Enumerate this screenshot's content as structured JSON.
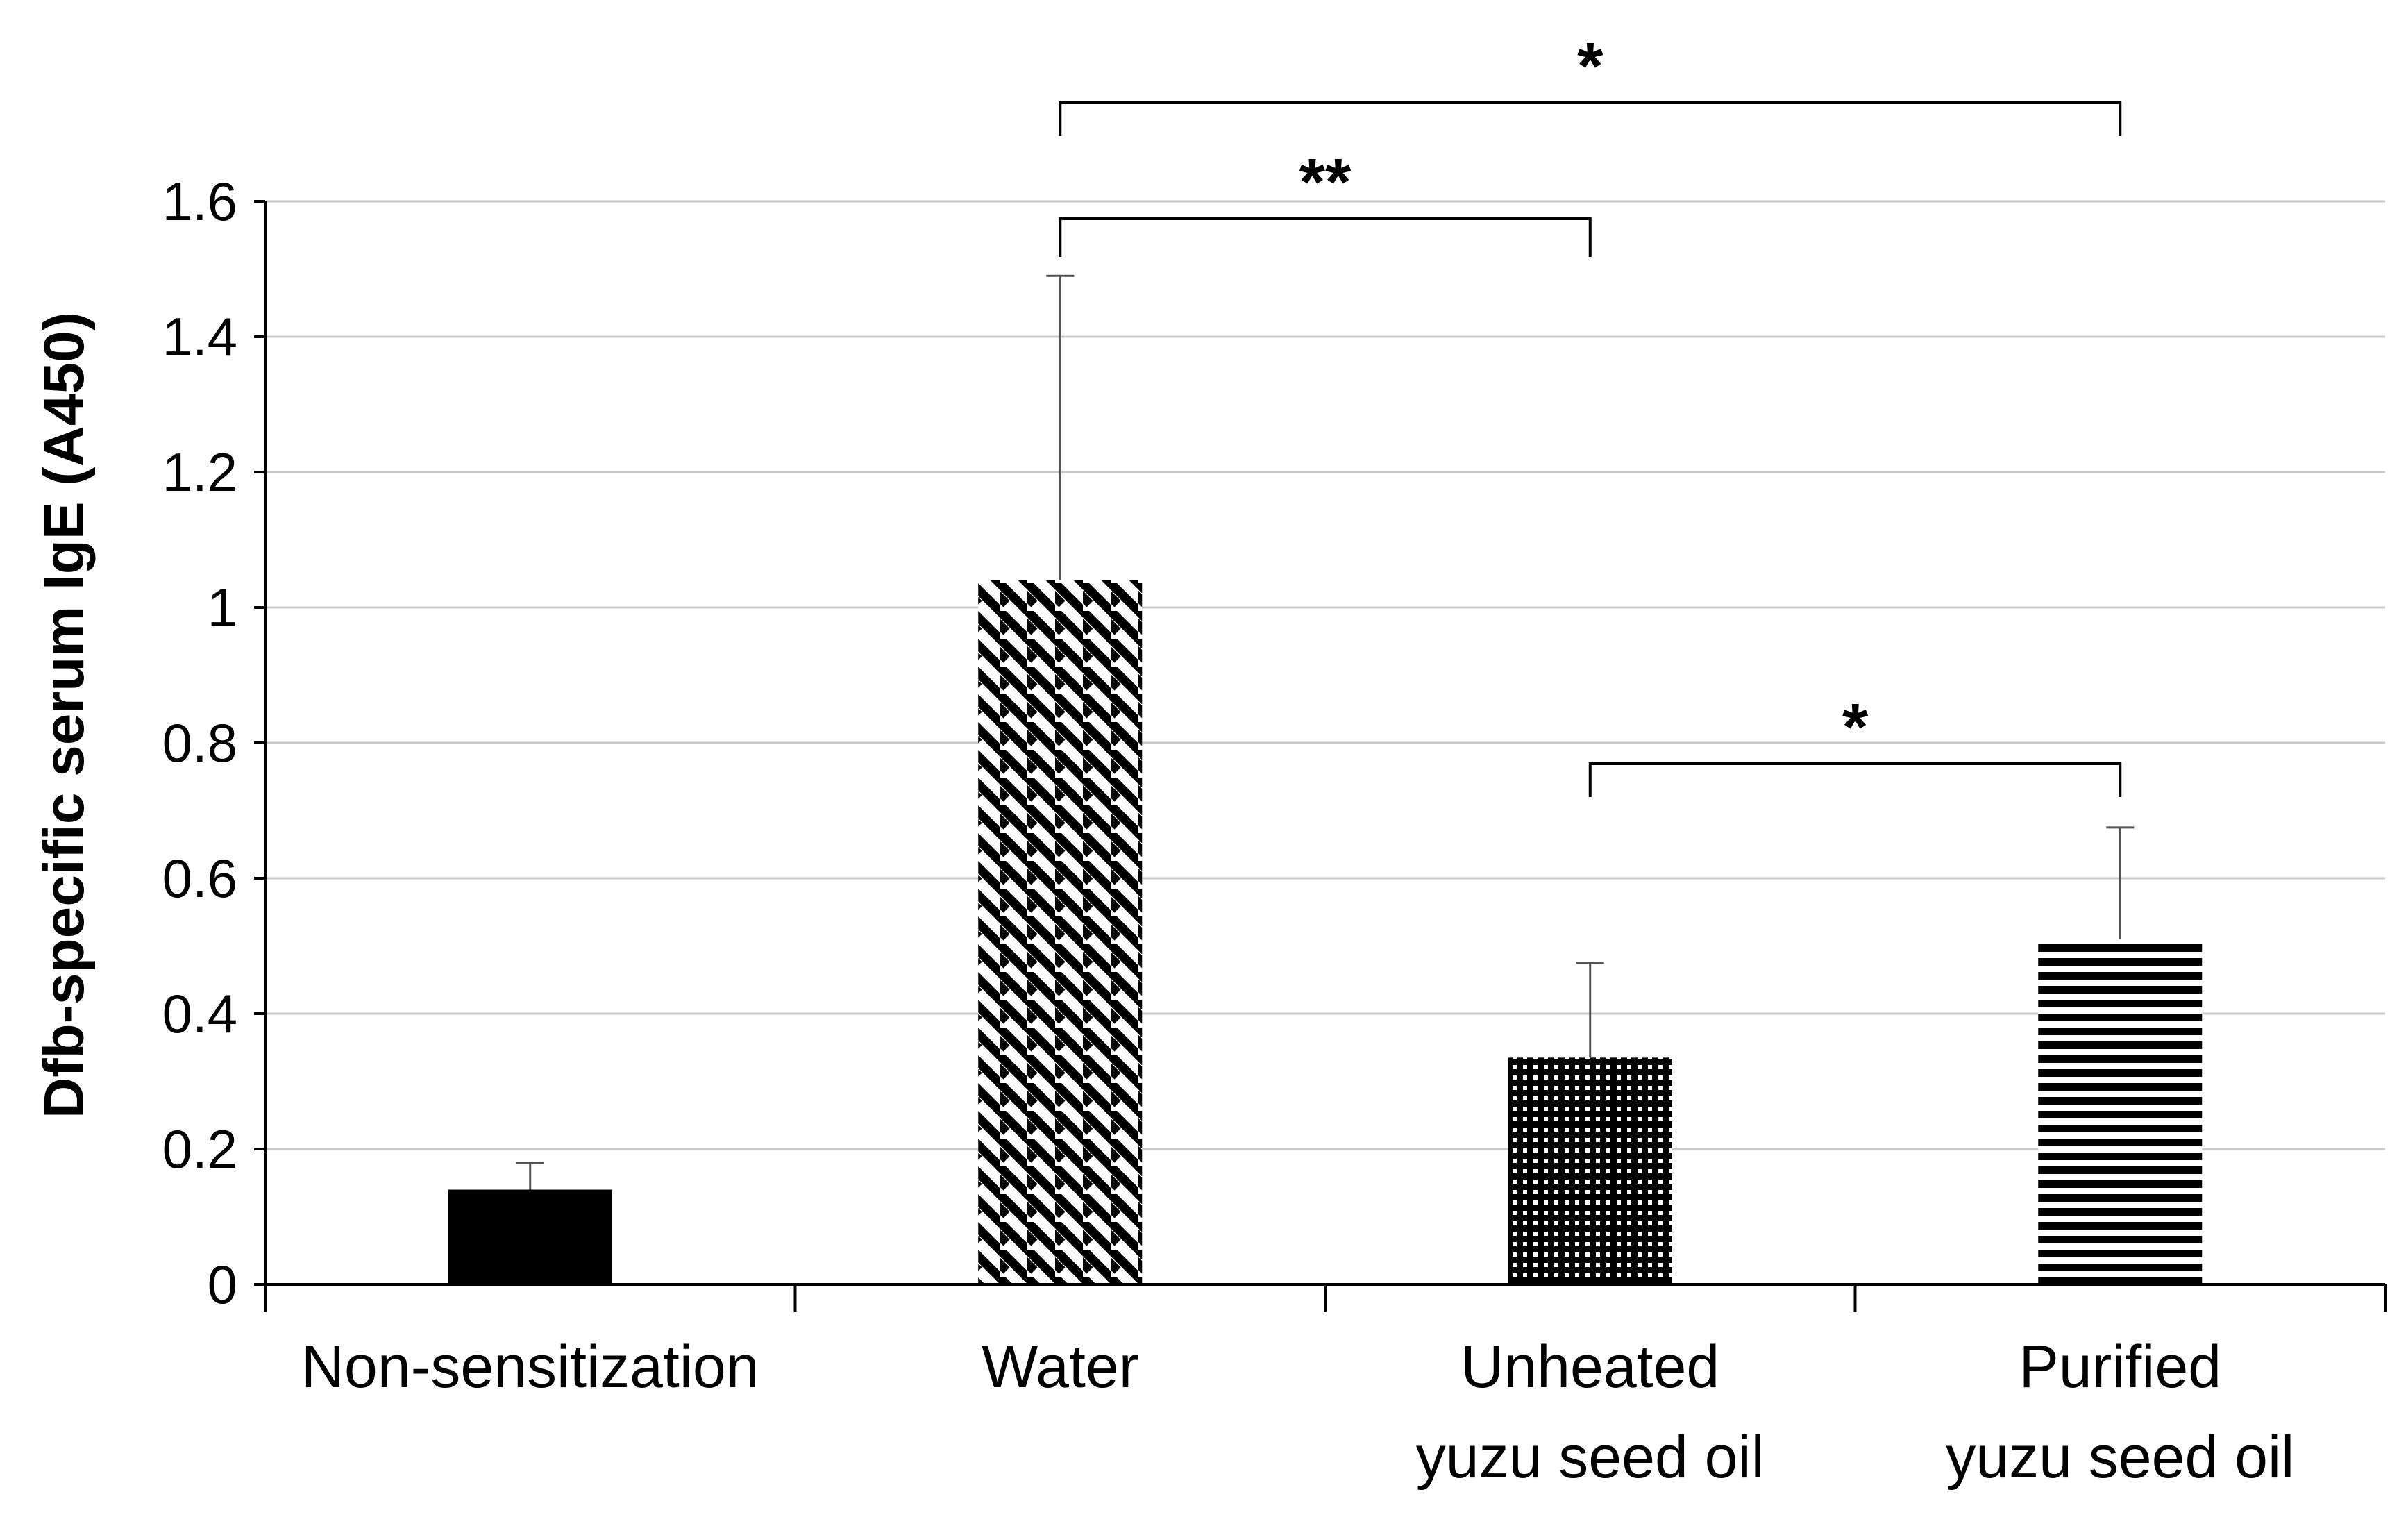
{
  "chart_data": {
    "type": "bar",
    "title": "",
    "xlabel": "",
    "ylabel": "Dfb-specific serum IgE (A450)",
    "ylim": [
      0,
      1.6
    ],
    "yticks": [
      "0",
      "0.2",
      "0.4",
      "0.6",
      "0.8",
      "1",
      "1.2",
      "1.4",
      "1.6"
    ],
    "grid": true,
    "categories": [
      {
        "line1": "Non-sensitization",
        "line2": ""
      },
      {
        "line1": "Water",
        "line2": ""
      },
      {
        "line1": "Unheated",
        "line2": "yuzu seed oil"
      },
      {
        "line1": "Purified",
        "line2": "yuzu seed oil"
      }
    ],
    "values": [
      0.14,
      1.04,
      0.335,
      0.51
    ],
    "errors": [
      0.04,
      0.45,
      0.14,
      0.165
    ],
    "patterns": [
      "solid",
      "diagonal",
      "dots",
      "horizontal"
    ],
    "significance": [
      {
        "from": 1,
        "to": 3,
        "label": "*"
      },
      {
        "from": 1,
        "to": 2,
        "label": "**"
      },
      {
        "from": 2,
        "to": 3,
        "label": "*"
      }
    ]
  }
}
